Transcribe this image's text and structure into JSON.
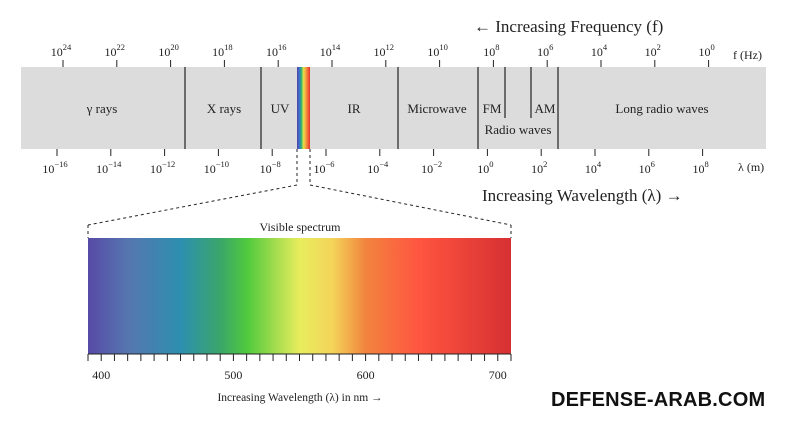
{
  "frequency_title": "← Increasing Frequency (f)",
  "wavelength_title": "Increasing Wavelength (λ) →",
  "frequency_unit": "f (Hz)",
  "wavelength_unit": "λ (m)",
  "frequency_ticks": [
    {
      "base": "10",
      "exp": "24"
    },
    {
      "base": "10",
      "exp": "22"
    },
    {
      "base": "10",
      "exp": "20"
    },
    {
      "base": "10",
      "exp": "18"
    },
    {
      "base": "10",
      "exp": "16"
    },
    {
      "base": "10",
      "exp": "14"
    },
    {
      "base": "10",
      "exp": "12"
    },
    {
      "base": "10",
      "exp": "10"
    },
    {
      "base": "10",
      "exp": "8"
    },
    {
      "base": "10",
      "exp": "6"
    },
    {
      "base": "10",
      "exp": "4"
    },
    {
      "base": "10",
      "exp": "2"
    },
    {
      "base": "10",
      "exp": "0"
    }
  ],
  "wavelength_ticks": [
    {
      "base": "10",
      "exp": "−16"
    },
    {
      "base": "10",
      "exp": "−14"
    },
    {
      "base": "10",
      "exp": "−12"
    },
    {
      "base": "10",
      "exp": "−10"
    },
    {
      "base": "10",
      "exp": "−8"
    },
    {
      "base": "10",
      "exp": "−6"
    },
    {
      "base": "10",
      "exp": "−4"
    },
    {
      "base": "10",
      "exp": "−2"
    },
    {
      "base": "10",
      "exp": "0"
    },
    {
      "base": "10",
      "exp": "2"
    },
    {
      "base": "10",
      "exp": "4"
    },
    {
      "base": "10",
      "exp": "6"
    },
    {
      "base": "10",
      "exp": "8"
    }
  ],
  "bands": [
    "γ rays",
    "X rays",
    "UV",
    "IR",
    "Microwave",
    "FM",
    "AM",
    "Long radio waves"
  ],
  "radio_waves_label": "Radio waves",
  "visible": {
    "title": "Visible spectrum",
    "axis_label": "Increasing Wavelength (λ) in nm →",
    "range_nm": [
      390,
      710
    ],
    "tick_step_nm": 10,
    "major_ticks": [
      400,
      500,
      600,
      700
    ],
    "gradient": [
      {
        "nm": 390,
        "color": "#574aa6"
      },
      {
        "nm": 420,
        "color": "#5676b0"
      },
      {
        "nm": 460,
        "color": "#2d8fb0"
      },
      {
        "nm": 490,
        "color": "#3aa66a"
      },
      {
        "nm": 510,
        "color": "#4fc93e"
      },
      {
        "nm": 550,
        "color": "#e8ed5c"
      },
      {
        "nm": 575,
        "color": "#f4d45a"
      },
      {
        "nm": 600,
        "color": "#f2843e"
      },
      {
        "nm": 640,
        "color": "#ff5540"
      },
      {
        "nm": 710,
        "color": "#d63032"
      }
    ]
  },
  "watermark": "DEFENSE-ARAB.COM"
}
